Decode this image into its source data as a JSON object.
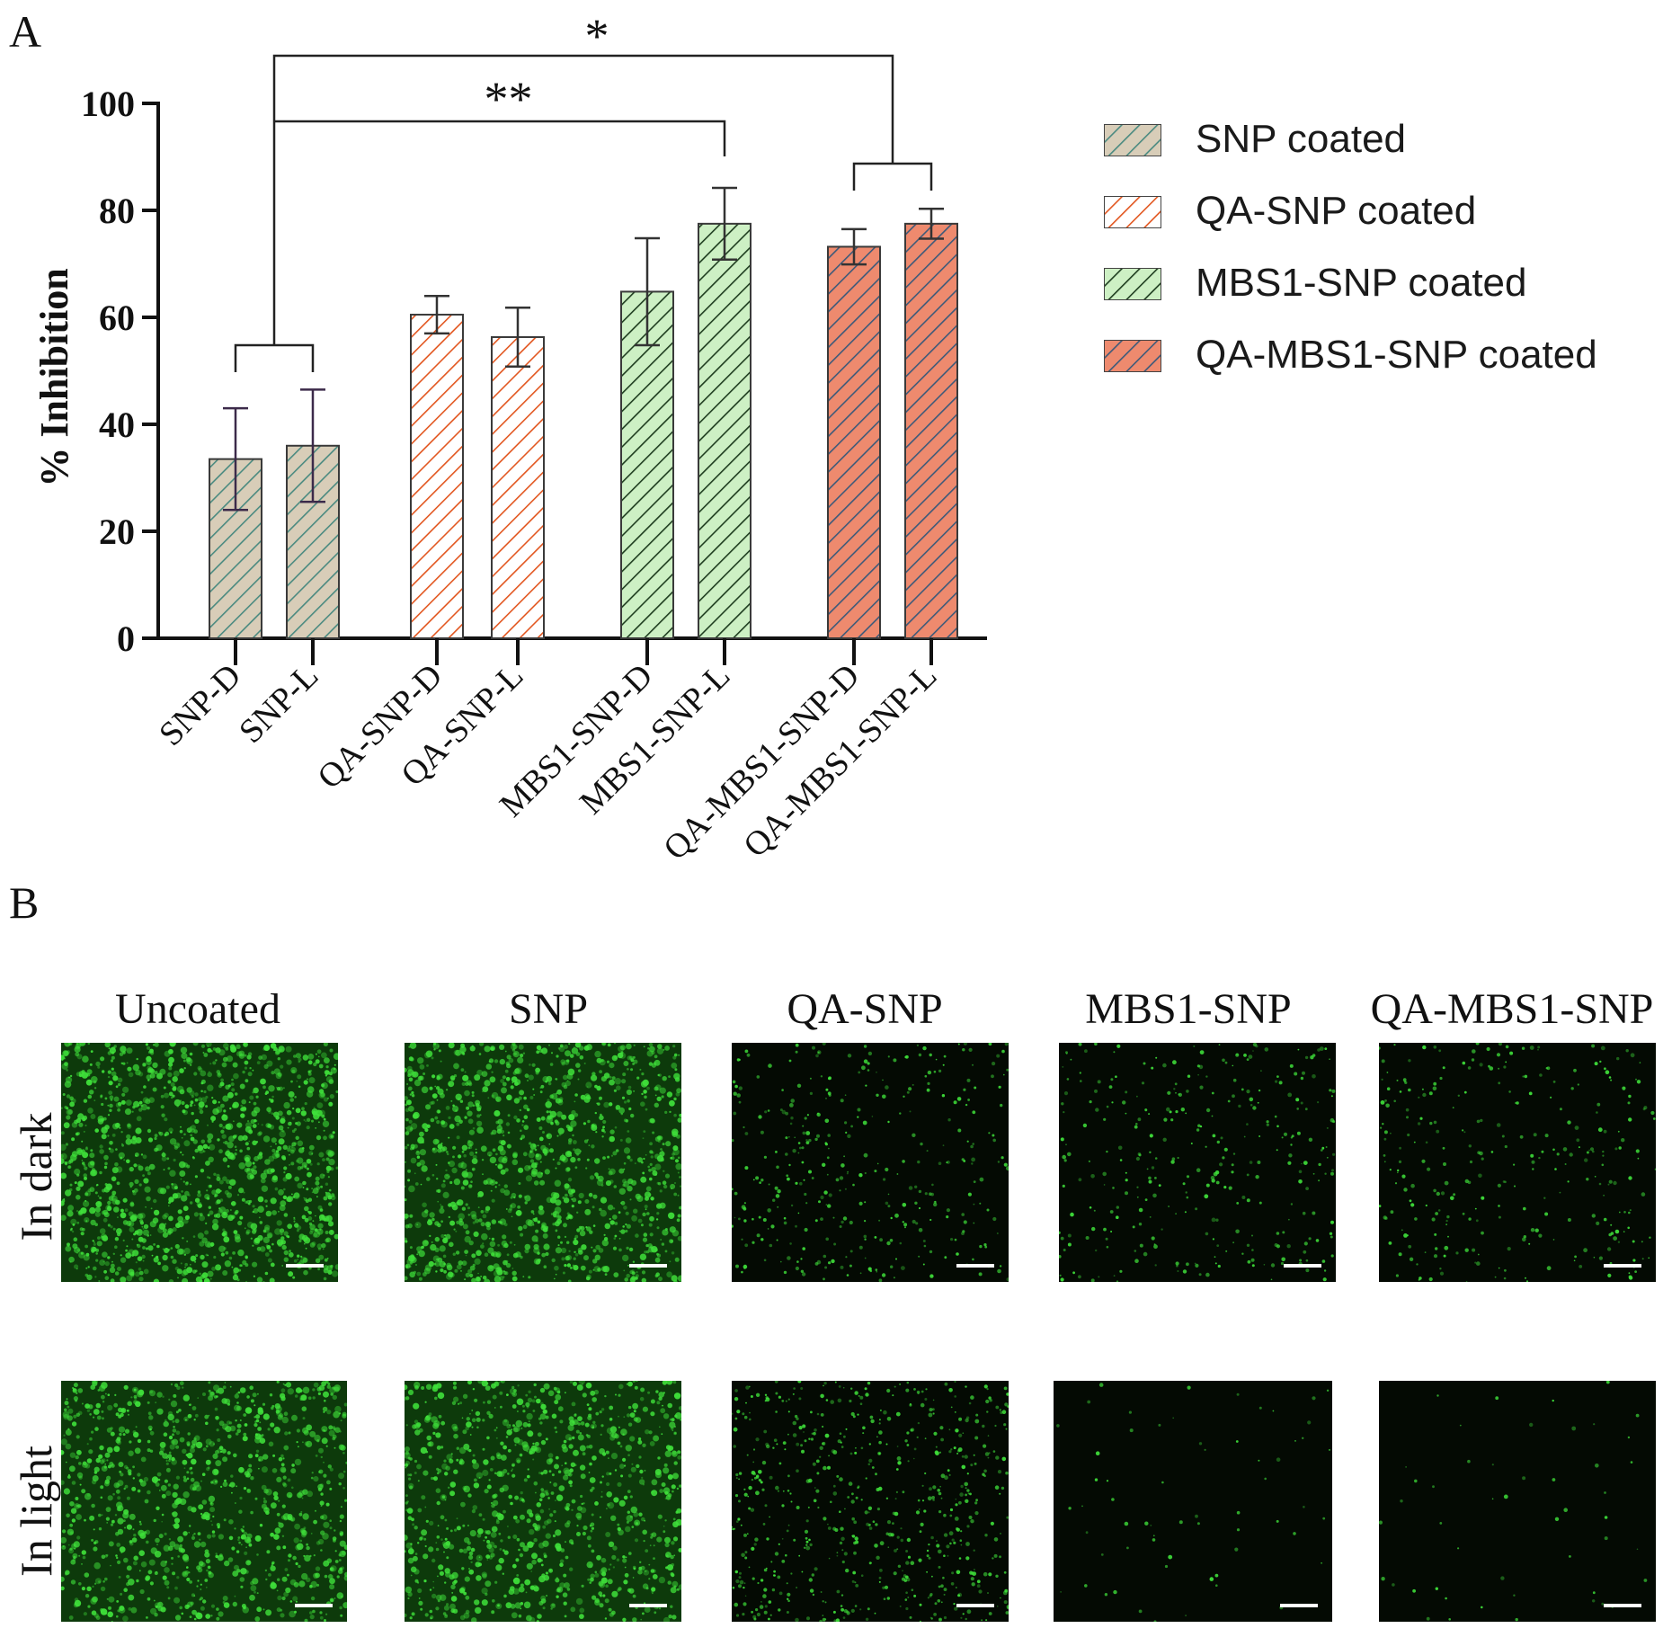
{
  "panels": {
    "a": "A",
    "b": "B"
  },
  "chart_data": {
    "type": "bar",
    "ylabel": "% Inhibition",
    "ylim": [
      0,
      100
    ],
    "yticks": [
      "0",
      "20",
      "40",
      "60",
      "80",
      "100"
    ],
    "categories": [
      "SNP-D",
      "SNP-L",
      "QA-SNP-D",
      "QA-SNP-L",
      "MBS1-SNP-D",
      "MBS1-SNP-L",
      "QA-MBS1-SNP-D",
      "QA-MBS1-SNP-L"
    ],
    "values": [
      33.5,
      36,
      60.5,
      56.3,
      64.8,
      77.5,
      73.2,
      77.5
    ],
    "errors": [
      9.5,
      10.5,
      3.5,
      5.5,
      10,
      6.7,
      3.3,
      2.8
    ],
    "groups": [
      0,
      0,
      1,
      1,
      2,
      2,
      3,
      3
    ],
    "series": [
      {
        "name": "SNP coated",
        "color": "#d8cdb8",
        "hatch": "#4a8a80"
      },
      {
        "name": "QA-SNP coated",
        "color": "#ffffff",
        "hatch": "#e2561f"
      },
      {
        "name": "MBS1-SNP coated",
        "color": "#cdf0c4",
        "hatch": "#1e3d1f"
      },
      {
        "name": "QA-MBS1-SNP coated",
        "color": "#ee8a6e",
        "hatch": "#3c5a7a"
      }
    ],
    "significance": [
      {
        "label": "*",
        "from_group": 0,
        "to_group": 3
      },
      {
        "label": "**",
        "from_group": 0,
        "to_bar": 5
      }
    ],
    "legend_position": "right"
  },
  "panel_b": {
    "columns": [
      "Uncoated",
      "SNP",
      "QA-SNP",
      "MBS1-SNP",
      "QA-MBS1-SNP"
    ],
    "rows": [
      "In dark",
      "In light"
    ],
    "signal_density": [
      [
        0.95,
        0.85,
        0.25,
        0.22,
        0.2
      ],
      [
        0.75,
        0.7,
        0.45,
        0.03,
        0.02
      ]
    ],
    "signal_color": "#3fe03a"
  }
}
